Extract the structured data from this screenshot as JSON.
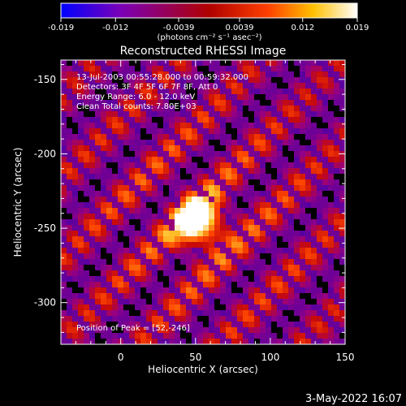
{
  "chart_data": {
    "type": "heatmap",
    "title": "Reconstructed RHESSI Image",
    "xlabel": "Heliocentric X (arcsec)",
    "ylabel": "Heliocentric Y (arcsec)",
    "xlim": [
      -40,
      150
    ],
    "ylim": [
      -328,
      -137
    ],
    "x_ticks": [
      0,
      50,
      100,
      150
    ],
    "y_ticks": [
      -150,
      -200,
      -250,
      -300
    ],
    "colorbar": {
      "ticks": [
        "-0.019",
        "-0.012",
        "-0.0039",
        "0.0039",
        "0.012",
        "0.019"
      ],
      "range": [
        -0.019,
        0.019
      ],
      "unit_label": "(photons cm⁻² s⁻¹ asec⁻²)",
      "colors": [
        "#0000ff",
        "#7a00b8",
        "#b00000",
        "#ff4000",
        "#ffc000",
        "#ffffff"
      ]
    },
    "annotations": [
      "13-Jul-2003 00:55:28.000 to 00:59:32.000",
      "Detectors: 3F 4F 5F 6F 7F 8F, Att 0",
      "Energy Range: 6.0 - 12.0 keV",
      "Clean     Total counts: 7.80E+03"
    ],
    "peak": {
      "label": "Position of Peak = [52,-246]",
      "x": 52,
      "y": -246
    }
  },
  "footer": {
    "date": "3-May-2022 16:07"
  }
}
